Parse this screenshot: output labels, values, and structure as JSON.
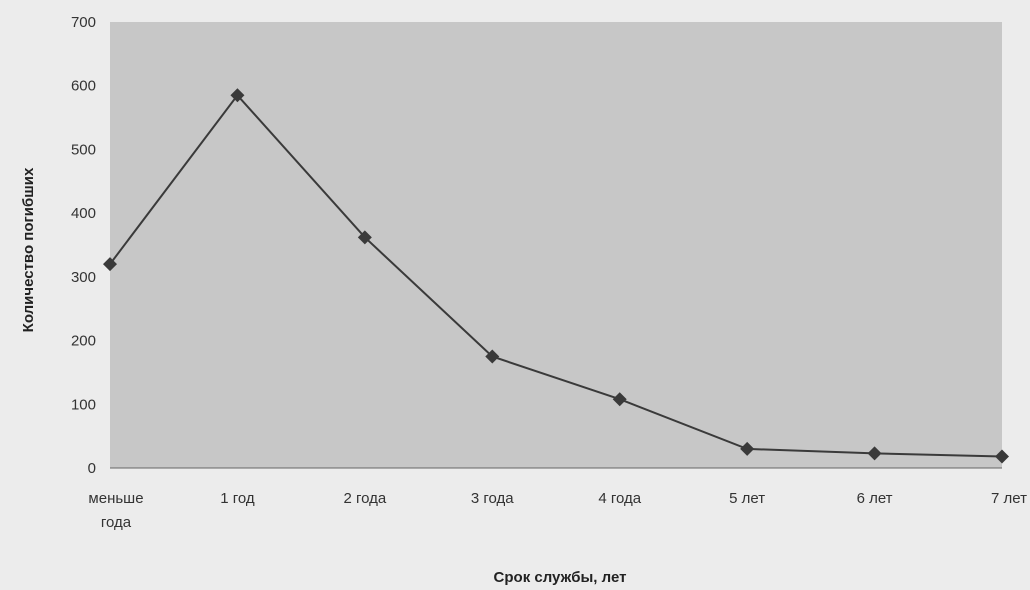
{
  "chart_data": {
    "type": "line",
    "title": "",
    "xlabel": "Срок службы, лет",
    "ylabel": "Количество погибших",
    "categories": [
      [
        "меньше",
        "года"
      ],
      [
        "1 год"
      ],
      [
        "2 года"
      ],
      [
        "3 года"
      ],
      [
        "4 года"
      ],
      [
        "5 лет"
      ],
      [
        "6 лет"
      ],
      [
        "7 лет"
      ]
    ],
    "series": [
      {
        "values": [
          320,
          585,
          362,
          175,
          108,
          30,
          23,
          18
        ]
      }
    ],
    "ylim": [
      0,
      700
    ],
    "yticks": [
      0,
      100,
      200,
      300,
      400,
      500,
      600,
      700
    ],
    "grid": false,
    "legend": "none",
    "colors": {
      "plot_background": "#c7c7c7",
      "page_background": "#ececec",
      "line": "#3a3a3a",
      "marker": "#3a3a3a"
    }
  }
}
